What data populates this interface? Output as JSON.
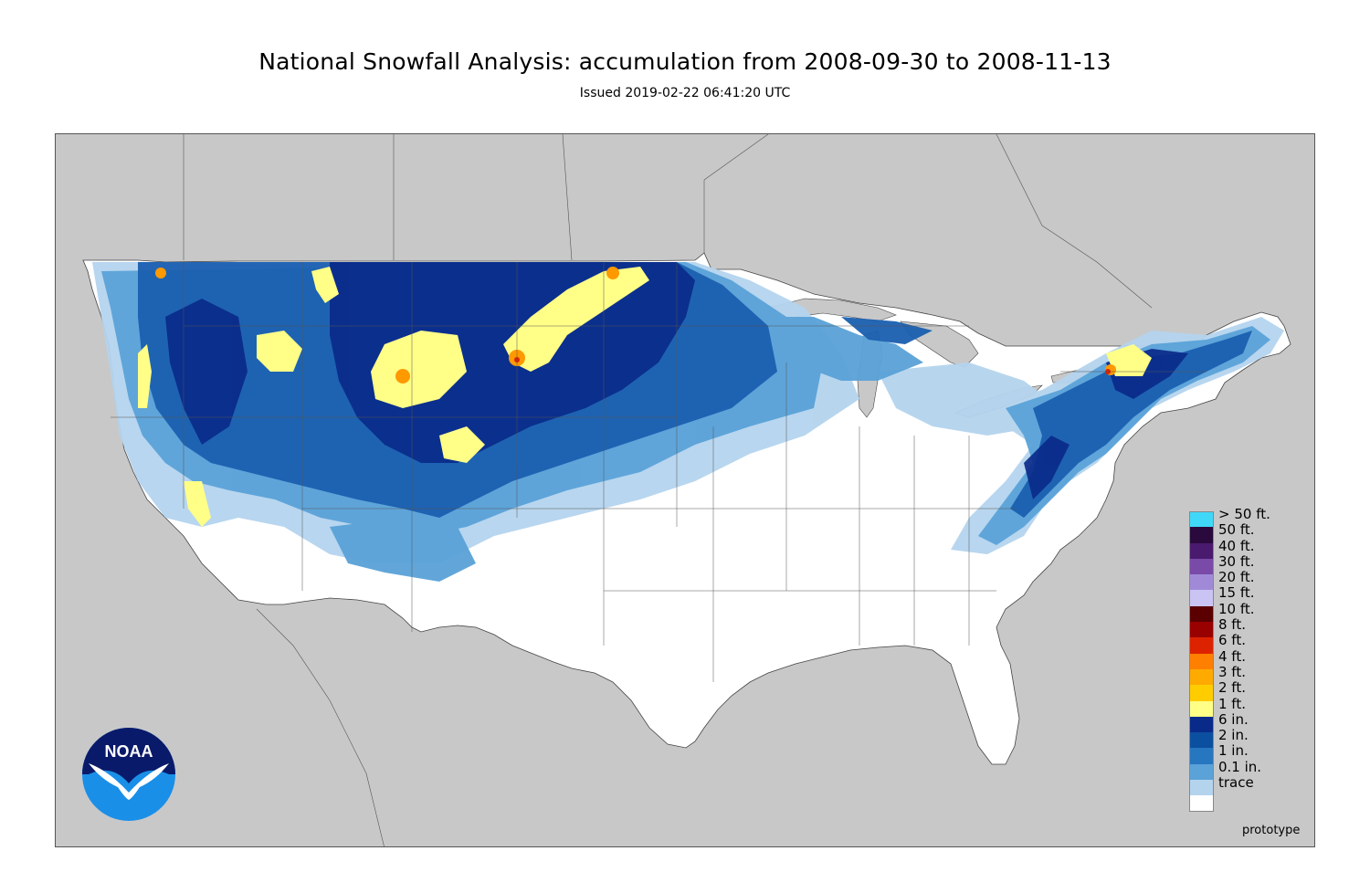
{
  "header": {
    "title": "National Snowfall Analysis: accumulation from 2008-09-30 to 2008-11-13",
    "subtitle": "Issued 2019-02-22 06:41:20 UTC"
  },
  "map": {
    "background_color": "#c8c8c8",
    "land_color": "#ffffff",
    "border_color": "#444444"
  },
  "legend": {
    "items": [
      {
        "label": "> 50 ft.",
        "color": "#40d8f8"
      },
      {
        "label": "50 ft.",
        "color": "#2a0a3c"
      },
      {
        "label": "40 ft.",
        "color": "#4a1a6e"
      },
      {
        "label": "30 ft.",
        "color": "#7a4aa8"
      },
      {
        "label": "20 ft.",
        "color": "#a08ad8"
      },
      {
        "label": "15 ft.",
        "color": "#cac4f4"
      },
      {
        "label": "10 ft.",
        "color": "#5a0000"
      },
      {
        "label": "8 ft.",
        "color": "#990000"
      },
      {
        "label": "6 ft.",
        "color": "#dd2200"
      },
      {
        "label": "4 ft.",
        "color": "#ff7f00"
      },
      {
        "label": "3 ft.",
        "color": "#ffaa00"
      },
      {
        "label": "2 ft.",
        "color": "#ffcc00"
      },
      {
        "label": "1 ft.",
        "color": "#ffff88"
      },
      {
        "label": "6 in.",
        "color": "#0a2a8a"
      },
      {
        "label": "2 in.",
        "color": "#0b4fa0"
      },
      {
        "label": "1 in.",
        "color": "#2676c0"
      },
      {
        "label": "0.1 in.",
        "color": "#5aa2d8"
      },
      {
        "label": "trace",
        "color": "#b4d4ee"
      },
      {
        "label": "",
        "color": "#ffffff"
      }
    ]
  },
  "footer": {
    "watermark": "prototype"
  },
  "logo": {
    "text": "NOAA",
    "colors": {
      "top": "#0a1a6a",
      "bottom": "#1a8fe8",
      "bird": "#ffffff"
    }
  }
}
